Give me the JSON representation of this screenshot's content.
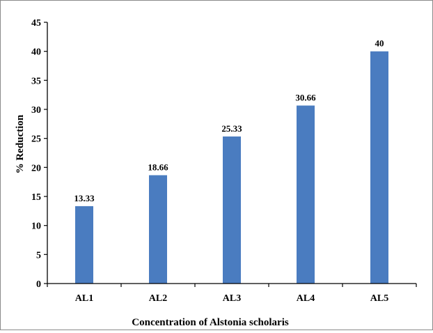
{
  "chart_data": {
    "type": "bar",
    "categories": [
      "AL1",
      "AL2",
      "AL3",
      "AL4",
      "AL5"
    ],
    "values": [
      13.33,
      18.66,
      25.33,
      30.66,
      40
    ],
    "value_labels": [
      "13.33",
      "18.66",
      "25.33",
      "30.66",
      "40"
    ],
    "title": "",
    "xlabel": "Concentration of Alstonia scholaris",
    "ylabel": "% Reduction",
    "ylim": [
      0,
      45
    ],
    "y_ticks": [
      0,
      5,
      10,
      15,
      20,
      25,
      30,
      35,
      40,
      45
    ],
    "y_tick_labels": [
      "0",
      "5",
      "10",
      "15",
      "20",
      "25",
      "30",
      "35",
      "40",
      "45"
    ],
    "grid": false,
    "legend": "none",
    "bar_color": "#4a7cc0",
    "axis_color": "#000000"
  }
}
